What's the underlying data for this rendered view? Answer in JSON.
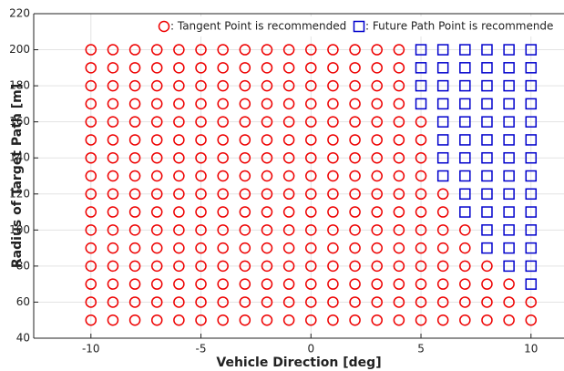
{
  "chart_data": {
    "type": "scatter",
    "xlabel": "Vehicle Direction [deg]",
    "ylabel": "Radius of Target Path [m]",
    "xlim": [
      -12.6,
      11.5
    ],
    "xticks": [
      -10,
      -5,
      0,
      5,
      10
    ],
    "ylim": [
      40,
      220
    ],
    "yticks": [
      40,
      60,
      80,
      100,
      120,
      140,
      160,
      180,
      200,
      220
    ],
    "grid": true,
    "legend": "upper right",
    "series": [
      {
        "name": ": Tangent Point is recommended",
        "color": "#ee0000",
        "marker": "circle",
        "x": [
          -10,
          -9,
          -8,
          -7,
          -6,
          -5,
          -4,
          -3,
          -2,
          -1,
          0,
          1,
          2,
          3,
          4,
          -10,
          -9,
          -8,
          -7,
          -6,
          -5,
          -4,
          -3,
          -2,
          -1,
          0,
          1,
          2,
          3,
          4,
          -10,
          -9,
          -8,
          -7,
          -6,
          -5,
          -4,
          -3,
          -2,
          -1,
          0,
          1,
          2,
          3,
          4,
          -10,
          -9,
          -8,
          -7,
          -6,
          -5,
          -4,
          -3,
          -2,
          -1,
          0,
          1,
          2,
          3,
          4,
          -10,
          -9,
          -8,
          -7,
          -6,
          -5,
          -4,
          -3,
          -2,
          -1,
          0,
          1,
          2,
          3,
          4,
          5,
          -10,
          -9,
          -8,
          -7,
          -6,
          -5,
          -4,
          -3,
          -2,
          -1,
          0,
          1,
          2,
          3,
          4,
          5,
          -10,
          -9,
          -8,
          -7,
          -6,
          -5,
          -4,
          -3,
          -2,
          -1,
          0,
          1,
          2,
          3,
          4,
          5,
          -10,
          -9,
          -8,
          -7,
          -6,
          -5,
          -4,
          -3,
          -2,
          -1,
          0,
          1,
          2,
          3,
          4,
          5,
          -10,
          -9,
          -8,
          -7,
          -6,
          -5,
          -4,
          -3,
          -2,
          -1,
          0,
          1,
          2,
          3,
          4,
          5,
          6,
          -10,
          -9,
          -8,
          -7,
          -6,
          -5,
          -4,
          -3,
          -2,
          -1,
          0,
          1,
          2,
          3,
          4,
          5,
          6,
          -10,
          -9,
          -8,
          -7,
          -6,
          -5,
          -4,
          -3,
          -2,
          -1,
          0,
          1,
          2,
          3,
          4,
          5,
          6,
          7,
          -10,
          -9,
          -8,
          -7,
          -6,
          -5,
          -4,
          -3,
          -2,
          -1,
          0,
          1,
          2,
          3,
          4,
          5,
          6,
          7,
          -10,
          -9,
          -8,
          -7,
          -6,
          -5,
          -4,
          -3,
          -2,
          -1,
          0,
          1,
          2,
          3,
          4,
          5,
          6,
          7,
          8,
          -10,
          -9,
          -8,
          -7,
          -6,
          -5,
          -4,
          -3,
          -2,
          -1,
          0,
          1,
          2,
          3,
          4,
          5,
          6,
          7,
          8,
          9,
          -10,
          -9,
          -8,
          -7,
          -6,
          -5,
          -4,
          -3,
          -2,
          -1,
          0,
          1,
          2,
          3,
          4,
          5,
          6,
          7,
          8,
          9,
          10,
          -10,
          -9,
          -8,
          -7,
          -6,
          -5,
          -4,
          -3,
          -2,
          -1,
          0,
          1,
          2,
          3,
          4,
          5,
          6,
          7,
          8,
          9,
          10
        ],
        "values": [
          200,
          200,
          200,
          200,
          200,
          200,
          200,
          200,
          200,
          200,
          200,
          200,
          200,
          200,
          200,
          190,
          190,
          190,
          190,
          190,
          190,
          190,
          190,
          190,
          190,
          190,
          190,
          190,
          190,
          190,
          180,
          180,
          180,
          180,
          180,
          180,
          180,
          180,
          180,
          180,
          180,
          180,
          180,
          180,
          180,
          170,
          170,
          170,
          170,
          170,
          170,
          170,
          170,
          170,
          170,
          170,
          170,
          170,
          170,
          170,
          160,
          160,
          160,
          160,
          160,
          160,
          160,
          160,
          160,
          160,
          160,
          160,
          160,
          160,
          160,
          160,
          150,
          150,
          150,
          150,
          150,
          150,
          150,
          150,
          150,
          150,
          150,
          150,
          150,
          150,
          150,
          150,
          140,
          140,
          140,
          140,
          140,
          140,
          140,
          140,
          140,
          140,
          140,
          140,
          140,
          140,
          140,
          140,
          130,
          130,
          130,
          130,
          130,
          130,
          130,
          130,
          130,
          130,
          130,
          130,
          130,
          130,
          130,
          130,
          120,
          120,
          120,
          120,
          120,
          120,
          120,
          120,
          120,
          120,
          120,
          120,
          120,
          120,
          120,
          120,
          120,
          110,
          110,
          110,
          110,
          110,
          110,
          110,
          110,
          110,
          110,
          110,
          110,
          110,
          110,
          110,
          110,
          110,
          100,
          100,
          100,
          100,
          100,
          100,
          100,
          100,
          100,
          100,
          100,
          100,
          100,
          100,
          100,
          100,
          100,
          100,
          90,
          90,
          90,
          90,
          90,
          90,
          90,
          90,
          90,
          90,
          90,
          90,
          90,
          90,
          90,
          90,
          90,
          90,
          80,
          80,
          80,
          80,
          80,
          80,
          80,
          80,
          80,
          80,
          80,
          80,
          80,
          80,
          80,
          80,
          80,
          80,
          80,
          70,
          70,
          70,
          70,
          70,
          70,
          70,
          70,
          70,
          70,
          70,
          70,
          70,
          70,
          70,
          70,
          70,
          70,
          70,
          70,
          60,
          60,
          60,
          60,
          60,
          60,
          60,
          60,
          60,
          60,
          60,
          60,
          60,
          60,
          60,
          60,
          60,
          60,
          60,
          60,
          60,
          50,
          50,
          50,
          50,
          50,
          50,
          50,
          50,
          50,
          50,
          50,
          50,
          50,
          50,
          50,
          50,
          50,
          50,
          50,
          50,
          50
        ]
      },
      {
        "name": ": Future Path Point is recommende",
        "color": "#0000cc",
        "marker": "square",
        "x": [
          5,
          6,
          7,
          8,
          9,
          10,
          5,
          6,
          7,
          8,
          9,
          10,
          5,
          6,
          7,
          8,
          9,
          10,
          5,
          6,
          7,
          8,
          9,
          10,
          6,
          7,
          8,
          9,
          10,
          6,
          7,
          8,
          9,
          10,
          6,
          7,
          8,
          9,
          10,
          6,
          7,
          8,
          9,
          10,
          7,
          8,
          9,
          10,
          7,
          8,
          9,
          10,
          8,
          9,
          10,
          8,
          9,
          10,
          9,
          10,
          10
        ],
        "values": [
          200,
          200,
          200,
          200,
          200,
          200,
          190,
          190,
          190,
          190,
          190,
          190,
          180,
          180,
          180,
          180,
          180,
          180,
          170,
          170,
          170,
          170,
          170,
          170,
          160,
          160,
          160,
          160,
          160,
          150,
          150,
          150,
          150,
          150,
          140,
          140,
          140,
          140,
          140,
          130,
          130,
          130,
          130,
          130,
          120,
          120,
          120,
          120,
          110,
          110,
          110,
          110,
          100,
          100,
          100,
          90,
          90,
          90,
          80,
          80,
          70
        ]
      }
    ]
  }
}
